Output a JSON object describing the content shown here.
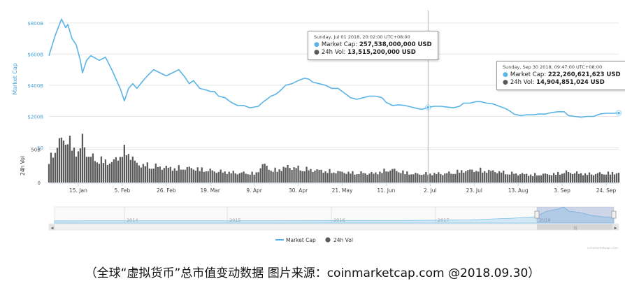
{
  "chart_data": {
    "type": "area",
    "xlabel": "",
    "ylabel": "Market Cap",
    "ylabel_volume": "24h Vol",
    "x_start": "2018-01-01",
    "x_end": "2018-09-30",
    "ylim": [
      0,
      880
    ],
    "y_ticks": [
      "$0",
      "$200B",
      "$400B",
      "$600B",
      "$800B"
    ],
    "vol_ylim": [
      0,
      75
    ],
    "vol_ticks": [
      "0",
      "50B"
    ],
    "x_ticks": [
      {
        "date": "2018-01-15",
        "label": "15. Jan"
      },
      {
        "date": "2018-02-05",
        "label": "5. Feb"
      },
      {
        "date": "2018-02-26",
        "label": "26. Feb"
      },
      {
        "date": "2018-03-19",
        "label": "19. Mar"
      },
      {
        "date": "2018-04-09",
        "label": "9. Apr"
      },
      {
        "date": "2018-04-30",
        "label": "30. Apr"
      },
      {
        "date": "2018-05-21",
        "label": "21. May"
      },
      {
        "date": "2018-06-11",
        "label": "11. Jun"
      },
      {
        "date": "2018-07-02",
        "label": "2. Jul"
      },
      {
        "date": "2018-07-23",
        "label": "23. Jul"
      },
      {
        "date": "2018-08-13",
        "label": "13. Aug"
      },
      {
        "date": "2018-09-03",
        "label": "3. Sep"
      },
      {
        "date": "2018-09-24",
        "label": "24. Sep"
      }
    ],
    "series": [
      {
        "name": "Market Cap",
        "unit": "$B",
        "color": "#5ab4e6",
        "points": [
          [
            "2018-01-01",
            590
          ],
          [
            "2018-01-04",
            720
          ],
          [
            "2018-01-07",
            825
          ],
          [
            "2018-01-09",
            770
          ],
          [
            "2018-01-10",
            790
          ],
          [
            "2018-01-12",
            700
          ],
          [
            "2018-01-14",
            660
          ],
          [
            "2018-01-16",
            560
          ],
          [
            "2018-01-17",
            480
          ],
          [
            "2018-01-19",
            560
          ],
          [
            "2018-01-21",
            590
          ],
          [
            "2018-01-25",
            560
          ],
          [
            "2018-01-28",
            580
          ],
          [
            "2018-01-31",
            500
          ],
          [
            "2018-02-02",
            440
          ],
          [
            "2018-02-04",
            380
          ],
          [
            "2018-02-06",
            300
          ],
          [
            "2018-02-08",
            380
          ],
          [
            "2018-02-10",
            410
          ],
          [
            "2018-02-12",
            380
          ],
          [
            "2018-02-15",
            430
          ],
          [
            "2018-02-17",
            460
          ],
          [
            "2018-02-20",
            500
          ],
          [
            "2018-02-23",
            480
          ],
          [
            "2018-02-26",
            460
          ],
          [
            "2018-03-01",
            480
          ],
          [
            "2018-03-04",
            500
          ],
          [
            "2018-03-07",
            450
          ],
          [
            "2018-03-09",
            410
          ],
          [
            "2018-03-11",
            430
          ],
          [
            "2018-03-14",
            380
          ],
          [
            "2018-03-17",
            370
          ],
          [
            "2018-03-19",
            360
          ],
          [
            "2018-03-21",
            360
          ],
          [
            "2018-03-23",
            330
          ],
          [
            "2018-03-26",
            320
          ],
          [
            "2018-03-29",
            290
          ],
          [
            "2018-04-01",
            270
          ],
          [
            "2018-04-04",
            270
          ],
          [
            "2018-04-07",
            255
          ],
          [
            "2018-04-09",
            260
          ],
          [
            "2018-04-11",
            265
          ],
          [
            "2018-04-13",
            290
          ],
          [
            "2018-04-15",
            310
          ],
          [
            "2018-04-17",
            330
          ],
          [
            "2018-04-19",
            340
          ],
          [
            "2018-04-21",
            360
          ],
          [
            "2018-04-24",
            400
          ],
          [
            "2018-04-27",
            410
          ],
          [
            "2018-04-30",
            430
          ],
          [
            "2018-05-03",
            445
          ],
          [
            "2018-05-05",
            440
          ],
          [
            "2018-05-07",
            420
          ],
          [
            "2018-05-10",
            410
          ],
          [
            "2018-05-13",
            400
          ],
          [
            "2018-05-16",
            380
          ],
          [
            "2018-05-19",
            380
          ],
          [
            "2018-05-22",
            350
          ],
          [
            "2018-05-25",
            320
          ],
          [
            "2018-05-28",
            310
          ],
          [
            "2018-05-31",
            320
          ],
          [
            "2018-06-03",
            330
          ],
          [
            "2018-06-06",
            330
          ],
          [
            "2018-06-09",
            320
          ],
          [
            "2018-06-11",
            290
          ],
          [
            "2018-06-14",
            270
          ],
          [
            "2018-06-17",
            275
          ],
          [
            "2018-06-20",
            270
          ],
          [
            "2018-06-23",
            260
          ],
          [
            "2018-06-26",
            250
          ],
          [
            "2018-06-28",
            245
          ],
          [
            "2018-07-01",
            257.5
          ],
          [
            "2018-07-04",
            265
          ],
          [
            "2018-07-07",
            265
          ],
          [
            "2018-07-10",
            260
          ],
          [
            "2018-07-13",
            255
          ],
          [
            "2018-07-16",
            265
          ],
          [
            "2018-07-18",
            285
          ],
          [
            "2018-07-21",
            285
          ],
          [
            "2018-07-24",
            295
          ],
          [
            "2018-07-26",
            295
          ],
          [
            "2018-07-29",
            285
          ],
          [
            "2018-08-01",
            280
          ],
          [
            "2018-08-04",
            265
          ],
          [
            "2018-08-07",
            250
          ],
          [
            "2018-08-09",
            235
          ],
          [
            "2018-08-11",
            215
          ],
          [
            "2018-08-14",
            205
          ],
          [
            "2018-08-17",
            210
          ],
          [
            "2018-08-20",
            210
          ],
          [
            "2018-08-23",
            215
          ],
          [
            "2018-08-26",
            215
          ],
          [
            "2018-08-29",
            225
          ],
          [
            "2018-09-01",
            230
          ],
          [
            "2018-09-04",
            230
          ],
          [
            "2018-09-06",
            205
          ],
          [
            "2018-09-09",
            200
          ],
          [
            "2018-09-12",
            195
          ],
          [
            "2018-09-15",
            200
          ],
          [
            "2018-09-18",
            200
          ],
          [
            "2018-09-21",
            215
          ],
          [
            "2018-09-24",
            220
          ],
          [
            "2018-09-27",
            220
          ],
          [
            "2018-09-30",
            222.26
          ]
        ]
      },
      {
        "name": "24h Vol",
        "unit": "$B",
        "color": "#595959",
        "points": [
          [
            "2018-01-01",
            35
          ],
          [
            "2018-01-05",
            55
          ],
          [
            "2018-01-08",
            70
          ],
          [
            "2018-01-11",
            60
          ],
          [
            "2018-01-15",
            45
          ],
          [
            "2018-01-17",
            65
          ],
          [
            "2018-01-20",
            40
          ],
          [
            "2018-01-25",
            35
          ],
          [
            "2018-01-31",
            30
          ],
          [
            "2018-02-05",
            45
          ],
          [
            "2018-02-07",
            50
          ],
          [
            "2018-02-12",
            28
          ],
          [
            "2018-02-20",
            25
          ],
          [
            "2018-03-01",
            22
          ],
          [
            "2018-03-10",
            22
          ],
          [
            "2018-03-20",
            18
          ],
          [
            "2018-03-31",
            15
          ],
          [
            "2018-04-10",
            14
          ],
          [
            "2018-04-13",
            28
          ],
          [
            "2018-04-18",
            18
          ],
          [
            "2018-04-25",
            24
          ],
          [
            "2018-05-05",
            20
          ],
          [
            "2018-05-15",
            17
          ],
          [
            "2018-05-25",
            15
          ],
          [
            "2018-06-05",
            14
          ],
          [
            "2018-06-13",
            20
          ],
          [
            "2018-06-24",
            13
          ],
          [
            "2018-07-01",
            13.5
          ],
          [
            "2018-07-10",
            14
          ],
          [
            "2018-07-18",
            18
          ],
          [
            "2018-07-25",
            19
          ],
          [
            "2018-08-02",
            17
          ],
          [
            "2018-08-10",
            14
          ],
          [
            "2018-08-20",
            12
          ],
          [
            "2018-08-30",
            13
          ],
          [
            "2018-09-05",
            16
          ],
          [
            "2018-09-15",
            13
          ],
          [
            "2018-09-22",
            14
          ],
          [
            "2018-09-30",
            14.9
          ]
        ]
      }
    ],
    "navigator": {
      "year_labels": [
        "2014",
        "2015",
        "2016",
        "2017",
        "2018"
      ],
      "selected_from": "2018-01-01",
      "selected_to": "2018-09-30"
    },
    "legend": {
      "placement": "bottom",
      "items": [
        "Market Cap",
        "24h Vol"
      ]
    },
    "grid": true
  },
  "tooltips": [
    {
      "date": "Sunday, Jul 01 2018, 20:02:00 UTC+08:00",
      "rows": [
        {
          "label": "Market Cap:",
          "value": "257,538,000,000 USD",
          "color": "#5ab4e6"
        },
        {
          "label": "24h Vol:",
          "value": "13,515,200,000 USD",
          "color": "#595959"
        }
      ]
    },
    {
      "date": "Sunday, Sep 30 2018, 09:47:00 UTC+08:00",
      "rows": [
        {
          "label": "Market Cap:",
          "value": "222,260,621,623 USD",
          "color": "#5ab4e6"
        },
        {
          "label": "24h Vol:",
          "value": "14,904,851,024 USD",
          "color": "#595959"
        }
      ]
    }
  ],
  "credit": "coinmarketcap.com",
  "caption": "（全球“虚拟货币”总市值变动数据 图片来源：coinmarketcap.com @2018.09.30）"
}
